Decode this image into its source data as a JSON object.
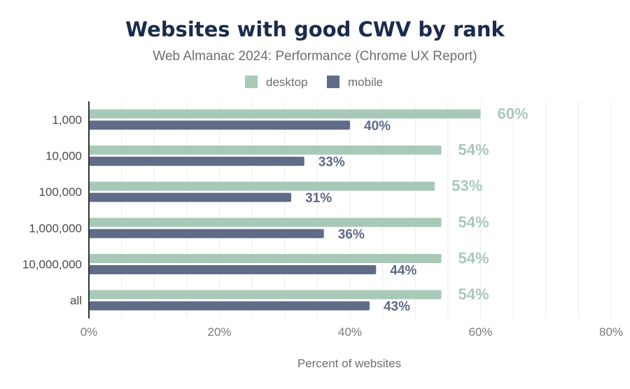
{
  "colors": {
    "desktop": "#a8c9b8",
    "mobile": "#5f6b87",
    "title": "#1b2b4d",
    "grid": "#ececec",
    "axis": "#333333"
  },
  "chart_data": {
    "type": "bar",
    "orientation": "horizontal",
    "title": "Websites with good CWV by rank",
    "subtitle": "Web Almanac 2024: Performance (Chrome UX Report)",
    "xlabel": "Percent of websites",
    "ylabel": "",
    "xlim": [
      0,
      80
    ],
    "x_ticks": [
      "0%",
      "20%",
      "40%",
      "60%",
      "80%"
    ],
    "grid": true,
    "legend_position": "top-center",
    "categories": [
      "1,000",
      "10,000",
      "100,000",
      "1,000,000",
      "10,000,000",
      "all"
    ],
    "series": [
      {
        "name": "desktop",
        "values": [
          60,
          54,
          53,
          54,
          54,
          54
        ],
        "labels": [
          "60%",
          "54%",
          "53%",
          "54%",
          "54%",
          "54%"
        ]
      },
      {
        "name": "mobile",
        "values": [
          40,
          33,
          31,
          36,
          44,
          43
        ],
        "labels": [
          "40%",
          "33%",
          "31%",
          "36%",
          "44%",
          "43%"
        ]
      }
    ]
  }
}
